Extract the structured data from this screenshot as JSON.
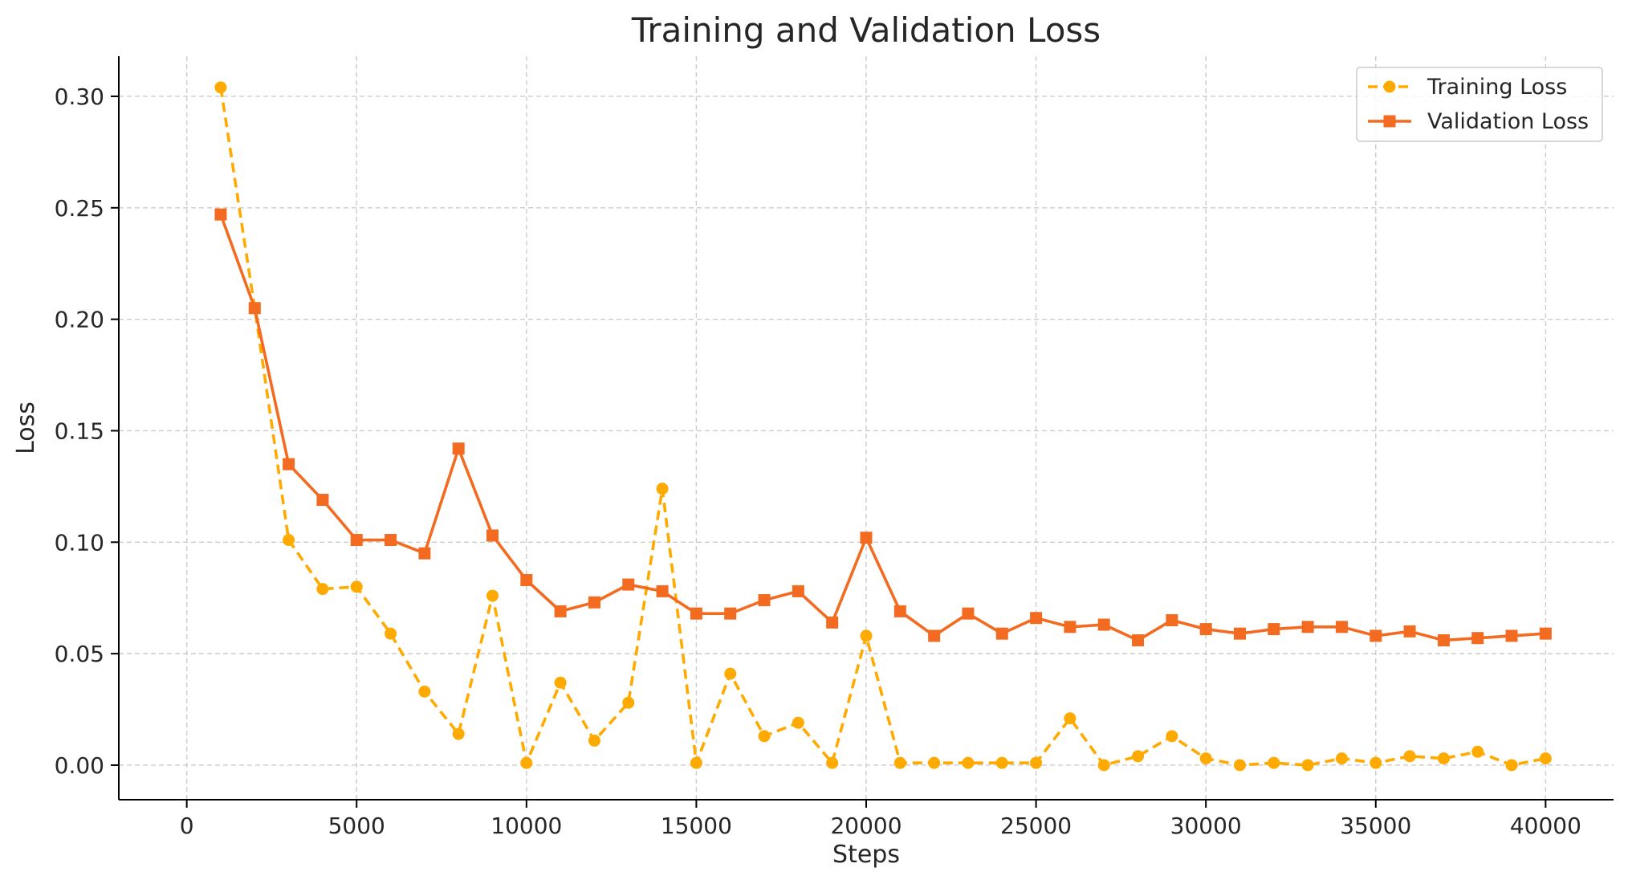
{
  "chart_data": {
    "type": "line",
    "title": "Training and Validation Loss",
    "xlabel": "Steps",
    "ylabel": "Loss",
    "xlim": [
      -2000,
      42000
    ],
    "ylim": [
      -0.0155,
      0.318
    ],
    "xticks": [
      0,
      5000,
      10000,
      15000,
      20000,
      25000,
      30000,
      35000,
      40000
    ],
    "xtick_labels": [
      "0",
      "5000",
      "10000",
      "15000",
      "20000",
      "25000",
      "30000",
      "35000",
      "40000"
    ],
    "yticks": [
      0.0,
      0.05,
      0.1,
      0.15,
      0.2,
      0.25,
      0.3
    ],
    "ytick_labels": [
      "0.00",
      "0.05",
      "0.10",
      "0.15",
      "0.20",
      "0.25",
      "0.30"
    ],
    "grid": true,
    "legend_position": "top-right",
    "x": [
      1000,
      2000,
      3000,
      4000,
      5000,
      6000,
      7000,
      8000,
      9000,
      10000,
      11000,
      12000,
      13000,
      14000,
      15000,
      16000,
      17000,
      18000,
      19000,
      20000,
      21000,
      22000,
      23000,
      24000,
      25000,
      26000,
      27000,
      28000,
      29000,
      30000,
      31000,
      32000,
      33000,
      34000,
      35000,
      36000,
      37000,
      38000,
      39000,
      40000
    ],
    "series": [
      {
        "name": "Training Loss",
        "color": "#FFAA00",
        "style": "dashed",
        "marker": "circle",
        "values": [
          0.304,
          0.205,
          0.101,
          0.079,
          0.08,
          0.059,
          0.033,
          0.014,
          0.076,
          0.001,
          0.037,
          0.011,
          0.028,
          0.124,
          0.001,
          0.041,
          0.013,
          0.019,
          0.001,
          0.058,
          0.001,
          0.001,
          0.001,
          0.001,
          0.001,
          0.021,
          0.0,
          0.004,
          0.013,
          0.003,
          0.0,
          0.001,
          0.0,
          0.003,
          0.001,
          0.004,
          0.003,
          0.006,
          0.0,
          0.003
        ]
      },
      {
        "name": "Validation Loss",
        "color": "#F26B21",
        "style": "solid",
        "marker": "square",
        "values": [
          0.247,
          0.205,
          0.135,
          0.119,
          0.101,
          0.101,
          0.095,
          0.142,
          0.103,
          0.083,
          0.069,
          0.073,
          0.081,
          0.078,
          0.068,
          0.068,
          0.074,
          0.078,
          0.064,
          0.102,
          0.069,
          0.058,
          0.068,
          0.059,
          0.066,
          0.062,
          0.063,
          0.056,
          0.065,
          0.061,
          0.059,
          0.061,
          0.062,
          0.062,
          0.058,
          0.06,
          0.056,
          0.057,
          0.058,
          0.059
        ]
      }
    ]
  }
}
